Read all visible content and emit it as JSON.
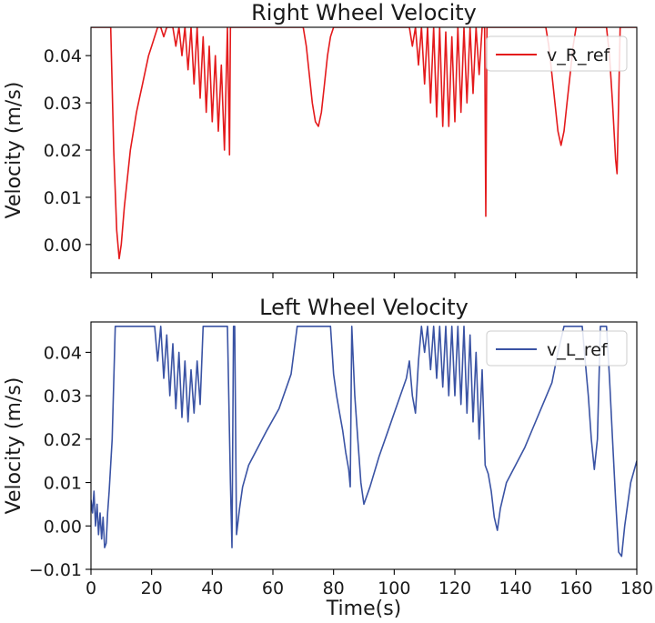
{
  "chart_data": [
    {
      "type": "line",
      "title": "Right Wheel Velocity",
      "xlabel": "",
      "ylabel": "Velocity (m/s)",
      "xlim": [
        0,
        180
      ],
      "ylim": [
        -0.006,
        0.046
      ],
      "xticks": [
        0,
        20,
        40,
        60,
        80,
        100,
        120,
        140,
        160,
        180
      ],
      "xtick_labels_visible": false,
      "yticks": [
        0.0,
        0.01,
        0.02,
        0.03,
        0.04
      ],
      "ytick_labels": [
        "0.00",
        "0.01",
        "0.02",
        "0.03",
        "0.04"
      ],
      "legend": {
        "placement": "top-right",
        "entries": [
          "v_R_ref"
        ]
      },
      "series": [
        {
          "name": "v_R_ref",
          "color": "#e41a1c",
          "points": [
            [
              0,
              0.046
            ],
            [
              6.5,
              0.046
            ],
            [
              7.5,
              0.02
            ],
            [
              8.5,
              0.003
            ],
            [
              9.3,
              -0.003
            ],
            [
              10,
              0.0
            ],
            [
              11,
              0.008
            ],
            [
              12,
              0.014
            ],
            [
              13,
              0.02
            ],
            [
              14,
              0.024
            ],
            [
              15,
              0.028
            ],
            [
              16,
              0.031
            ],
            [
              17,
              0.034
            ],
            [
              18,
              0.037
            ],
            [
              19,
              0.04
            ],
            [
              20,
              0.042
            ],
            [
              21,
              0.044
            ],
            [
              22,
              0.046
            ],
            [
              23,
              0.046
            ],
            [
              24,
              0.044
            ],
            [
              25,
              0.046
            ],
            [
              27,
              0.046
            ],
            [
              28,
              0.042
            ],
            [
              29,
              0.046
            ],
            [
              30,
              0.04
            ],
            [
              31,
              0.046
            ],
            [
              32,
              0.037
            ],
            [
              33,
              0.046
            ],
            [
              34,
              0.034
            ],
            [
              35,
              0.046
            ],
            [
              36,
              0.031
            ],
            [
              37,
              0.044
            ],
            [
              38,
              0.028
            ],
            [
              39,
              0.042
            ],
            [
              40,
              0.026
            ],
            [
              41,
              0.04
            ],
            [
              42,
              0.024
            ],
            [
              43,
              0.038
            ],
            [
              44,
              0.02
            ],
            [
              45,
              0.046
            ],
            [
              45.7,
              0.019
            ],
            [
              46,
              0.046
            ],
            [
              46.4,
              0.046
            ],
            [
              47,
              0.046
            ],
            [
              70,
              0.046
            ],
            [
              71,
              0.042
            ],
            [
              72,
              0.036
            ],
            [
              73,
              0.03
            ],
            [
              74,
              0.026
            ],
            [
              75,
              0.025
            ],
            [
              76,
              0.028
            ],
            [
              77,
              0.034
            ],
            [
              78,
              0.04
            ],
            [
              79,
              0.044
            ],
            [
              80,
              0.046
            ],
            [
              105,
              0.046
            ],
            [
              106,
              0.042
            ],
            [
              107,
              0.046
            ],
            [
              108,
              0.038
            ],
            [
              109,
              0.046
            ],
            [
              110,
              0.034
            ],
            [
              111,
              0.046
            ],
            [
              112,
              0.03
            ],
            [
              113,
              0.046
            ],
            [
              114,
              0.027
            ],
            [
              115,
              0.046
            ],
            [
              116,
              0.025
            ],
            [
              117,
              0.045
            ],
            [
              118,
              0.025
            ],
            [
              119,
              0.044
            ],
            [
              120,
              0.026
            ],
            [
              121,
              0.046
            ],
            [
              122,
              0.028
            ],
            [
              123,
              0.046
            ],
            [
              124,
              0.03
            ],
            [
              125,
              0.046
            ],
            [
              126,
              0.032
            ],
            [
              127,
              0.046
            ],
            [
              128,
              0.036
            ],
            [
              129,
              0.046
            ],
            [
              129.8,
              0.046
            ],
            [
              130.2,
              0.006
            ],
            [
              130.6,
              0.046
            ],
            [
              131,
              0.046
            ],
            [
              150,
              0.046
            ],
            [
              151,
              0.042
            ],
            [
              152,
              0.036
            ],
            [
              153,
              0.03
            ],
            [
              154,
              0.024
            ],
            [
              155,
              0.021
            ],
            [
              156,
              0.024
            ],
            [
              157,
              0.03
            ],
            [
              158,
              0.036
            ],
            [
              159,
              0.042
            ],
            [
              160,
              0.046
            ],
            [
              170,
              0.046
            ],
            [
              171,
              0.04
            ],
            [
              172,
              0.03
            ],
            [
              173,
              0.018
            ],
            [
              173.5,
              0.015
            ],
            [
              174,
              0.03
            ],
            [
              174.5,
              0.046
            ],
            [
              180,
              0.046
            ]
          ]
        }
      ]
    },
    {
      "type": "line",
      "title": "Left Wheel Velocity",
      "xlabel": "Time(s)",
      "ylabel": "Velocity (m/s)",
      "xlim": [
        0,
        180
      ],
      "ylim": [
        -0.01,
        0.047
      ],
      "xticks": [
        0,
        20,
        40,
        60,
        80,
        100,
        120,
        140,
        160,
        180
      ],
      "xtick_labels": [
        "0",
        "20",
        "40",
        "60",
        "80",
        "100",
        "120",
        "140",
        "160",
        "180"
      ],
      "yticks": [
        -0.01,
        0.0,
        0.01,
        0.02,
        0.03,
        0.04
      ],
      "ytick_labels": [
        "−0.01",
        "0.00",
        "0.01",
        "0.02",
        "0.03",
        "0.04"
      ],
      "legend": {
        "placement": "top-right",
        "entries": [
          "v_L_ref"
        ]
      },
      "series": [
        {
          "name": "v_L_ref",
          "color": "#3a53a4",
          "points": [
            [
              0,
              0.006
            ],
            [
              0.5,
              0.003
            ],
            [
              1,
              0.008
            ],
            [
              1.5,
              0.0
            ],
            [
              2,
              0.005
            ],
            [
              2.5,
              -0.002
            ],
            [
              3,
              0.003
            ],
            [
              3.5,
              -0.003
            ],
            [
              4,
              0.002
            ],
            [
              4.5,
              -0.005
            ],
            [
              5,
              -0.004
            ],
            [
              5.5,
              0.003
            ],
            [
              6,
              0.008
            ],
            [
              7,
              0.02
            ],
            [
              8,
              0.046
            ],
            [
              21,
              0.046
            ],
            [
              22,
              0.038
            ],
            [
              23,
              0.046
            ],
            [
              24,
              0.034
            ],
            [
              25,
              0.044
            ],
            [
              26,
              0.03
            ],
            [
              27,
              0.042
            ],
            [
              28,
              0.027
            ],
            [
              29,
              0.04
            ],
            [
              30,
              0.025
            ],
            [
              31,
              0.038
            ],
            [
              32,
              0.024
            ],
            [
              33,
              0.036
            ],
            [
              34,
              0.026
            ],
            [
              35,
              0.038
            ],
            [
              36,
              0.028
            ],
            [
              37,
              0.046
            ],
            [
              45,
              0.046
            ],
            [
              46,
              0.01
            ],
            [
              46.5,
              -0.005
            ],
            [
              47,
              0.046
            ],
            [
              47.4,
              0.046
            ],
            [
              48,
              -0.002
            ],
            [
              49,
              0.004
            ],
            [
              50,
              0.009
            ],
            [
              52,
              0.014
            ],
            [
              55,
              0.018
            ],
            [
              58,
              0.022
            ],
            [
              62,
              0.027
            ],
            [
              66,
              0.035
            ],
            [
              68,
              0.046
            ],
            [
              79,
              0.046
            ],
            [
              80,
              0.035
            ],
            [
              81,
              0.03
            ],
            [
              82,
              0.026
            ],
            [
              83,
              0.022
            ],
            [
              84,
              0.017
            ],
            [
              85,
              0.013
            ],
            [
              85.5,
              0.009
            ],
            [
              86,
              0.046
            ],
            [
              87,
              0.03
            ],
            [
              88,
              0.02
            ],
            [
              89,
              0.01
            ],
            [
              90,
              0.005
            ],
            [
              92,
              0.009
            ],
            [
              95,
              0.016
            ],
            [
              98,
              0.022
            ],
            [
              100,
              0.026
            ],
            [
              102,
              0.03
            ],
            [
              104,
              0.034
            ],
            [
              105,
              0.038
            ],
            [
              106,
              0.03
            ],
            [
              107,
              0.026
            ],
            [
              108,
              0.038
            ],
            [
              109,
              0.046
            ],
            [
              110,
              0.04
            ],
            [
              111,
              0.046
            ],
            [
              112,
              0.036
            ],
            [
              113,
              0.046
            ],
            [
              114,
              0.034
            ],
            [
              115,
              0.046
            ],
            [
              116,
              0.032
            ],
            [
              117,
              0.046
            ],
            [
              118,
              0.03
            ],
            [
              119,
              0.046
            ],
            [
              120,
              0.03
            ],
            [
              121,
              0.046
            ],
            [
              122,
              0.028
            ],
            [
              123,
              0.046
            ],
            [
              124,
              0.026
            ],
            [
              125,
              0.044
            ],
            [
              126,
              0.024
            ],
            [
              127,
              0.04
            ],
            [
              128,
              0.02
            ],
            [
              129,
              0.036
            ],
            [
              130,
              0.014
            ],
            [
              131,
              0.012
            ],
            [
              132,
              0.008
            ],
            [
              133,
              0.002
            ],
            [
              134,
              -0.001
            ],
            [
              135,
              0.004
            ],
            [
              137,
              0.01
            ],
            [
              140,
              0.014
            ],
            [
              143,
              0.018
            ],
            [
              146,
              0.023
            ],
            [
              149,
              0.028
            ],
            [
              152,
              0.033
            ],
            [
              154,
              0.04
            ],
            [
              156,
              0.046
            ],
            [
              162,
              0.046
            ],
            [
              163,
              0.038
            ],
            [
              164,
              0.03
            ],
            [
              165,
              0.02
            ],
            [
              166,
              0.013
            ],
            [
              167,
              0.02
            ],
            [
              168,
              0.046
            ],
            [
              170,
              0.046
            ],
            [
              171,
              0.034
            ],
            [
              172,
              0.02
            ],
            [
              173,
              0.006
            ],
            [
              174,
              -0.006
            ],
            [
              175,
              -0.007
            ],
            [
              176,
              0.0
            ],
            [
              177,
              0.005
            ],
            [
              178,
              0.01
            ],
            [
              180,
              0.015
            ]
          ]
        }
      ]
    }
  ]
}
